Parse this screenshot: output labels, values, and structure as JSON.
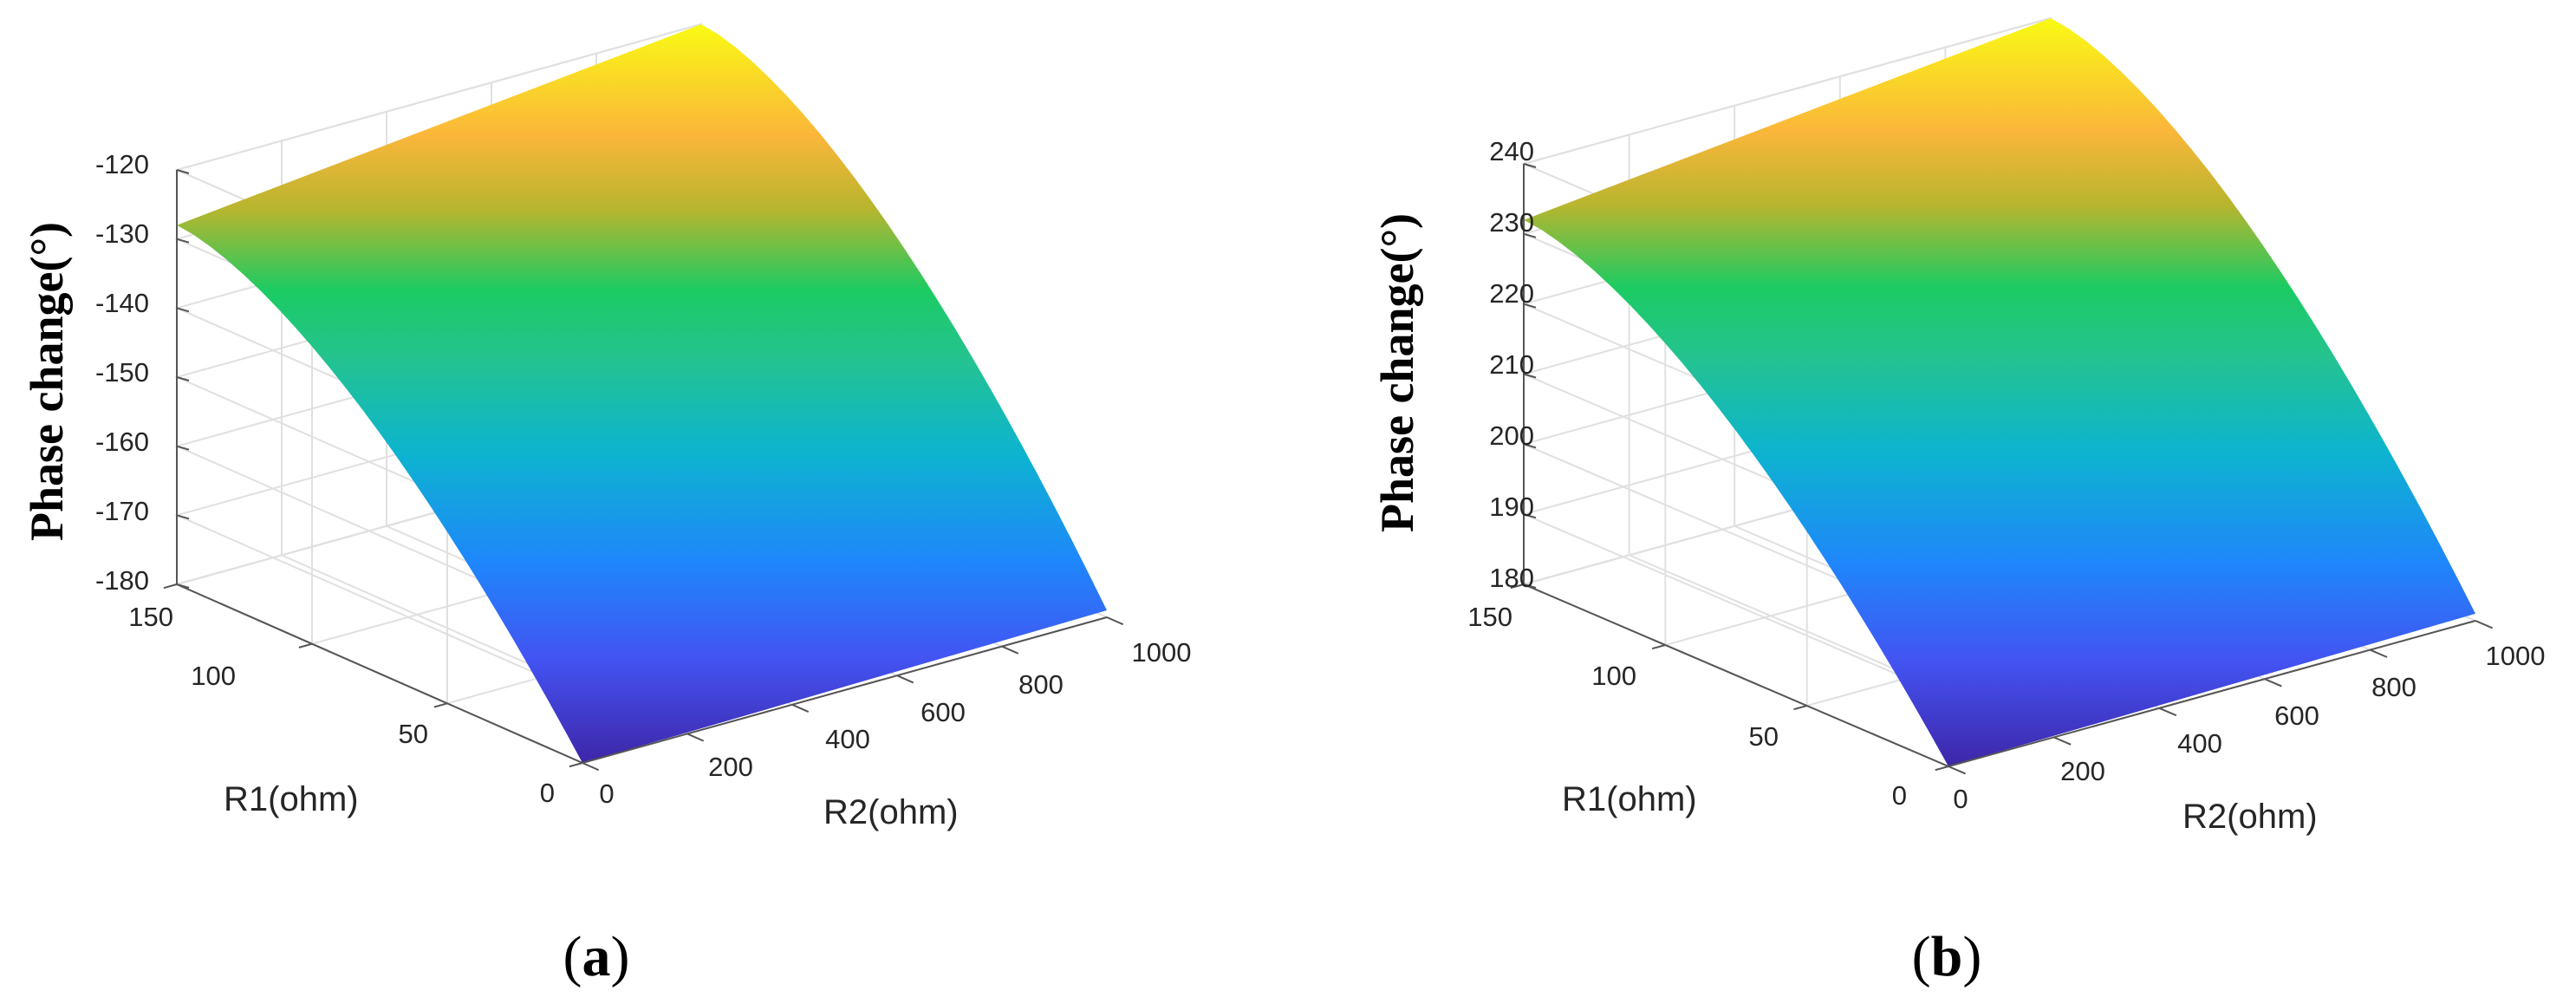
{
  "panels": [
    {
      "caption": "a",
      "chart_data": {
        "type": "surface",
        "xlabel": "R2(ohm)",
        "ylabel": "R1(ohm)",
        "zlabel": "Phase change(°)",
        "xlim": [
          0,
          1000
        ],
        "ylim": [
          0,
          150
        ],
        "zlim": [
          -180,
          -120
        ],
        "xticks": [
          0,
          200,
          400,
          600,
          800,
          1000
        ],
        "yticks": [
          0,
          50,
          100,
          150
        ],
        "zticks": [
          -180,
          -170,
          -160,
          -150,
          -140,
          -130,
          -120
        ],
        "surface_corners": [
          {
            "R2": 0,
            "R1": 0,
            "phase": -180
          },
          {
            "R2": 1000,
            "R1": 0,
            "phase": -179
          },
          {
            "R2": 0,
            "R1": 150,
            "phase": -128
          },
          {
            "R2": 1000,
            "R1": 150,
            "phase": -120
          }
        ],
        "colormap": "parula",
        "grid": true
      }
    },
    {
      "caption": "b",
      "chart_data": {
        "type": "surface",
        "xlabel": "R2(ohm)",
        "ylabel": "R1(ohm)",
        "zlabel": "Phase change(°)",
        "xlim": [
          0,
          1000
        ],
        "ylim": [
          0,
          150
        ],
        "zlim": [
          180,
          240
        ],
        "xticks": [
          0,
          200,
          400,
          600,
          800,
          1000
        ],
        "yticks": [
          0,
          50,
          100,
          150
        ],
        "zticks": [
          180,
          190,
          200,
          210,
          220,
          230,
          240
        ],
        "surface_corners": [
          {
            "R2": 0,
            "R1": 0,
            "phase": 180
          },
          {
            "R2": 1000,
            "R1": 0,
            "phase": 181
          },
          {
            "R2": 0,
            "R1": 150,
            "phase": 232
          },
          {
            "R2": 1000,
            "R1": 150,
            "phase": 240
          }
        ],
        "colormap": "parula",
        "grid": true
      }
    }
  ]
}
